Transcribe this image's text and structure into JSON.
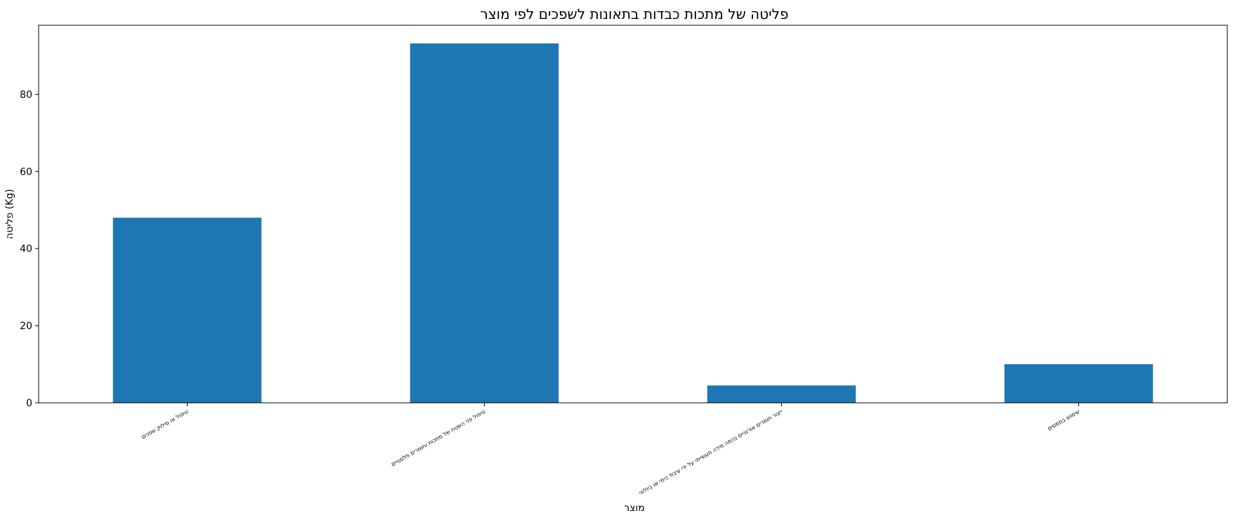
{
  "chart_data": {
    "type": "bar",
    "title": "פליטה של מתכות כבדות בתאונות לשפכים לפי מוצר",
    "xlabel": "מוצר",
    "ylabel": "פליטה (Kg)",
    "categories": [
      "טיפול או סילוק שפכים",
      "טיפול פני השטח של מתכות וחומרים פלסטיים",
      "ייצור חומרים אורגניים בכמה מידה תעשייתי על ידי עיבוד כימי או ביולוגי",
      "שימוש בממסים"
    ],
    "values": [
      48,
      93.2,
      4.5,
      10
    ],
    "ylim": [
      0,
      97.9
    ],
    "yticks": [
      0,
      20,
      40,
      60,
      80
    ],
    "bar_color": "#1f77b4",
    "grid": false
  }
}
